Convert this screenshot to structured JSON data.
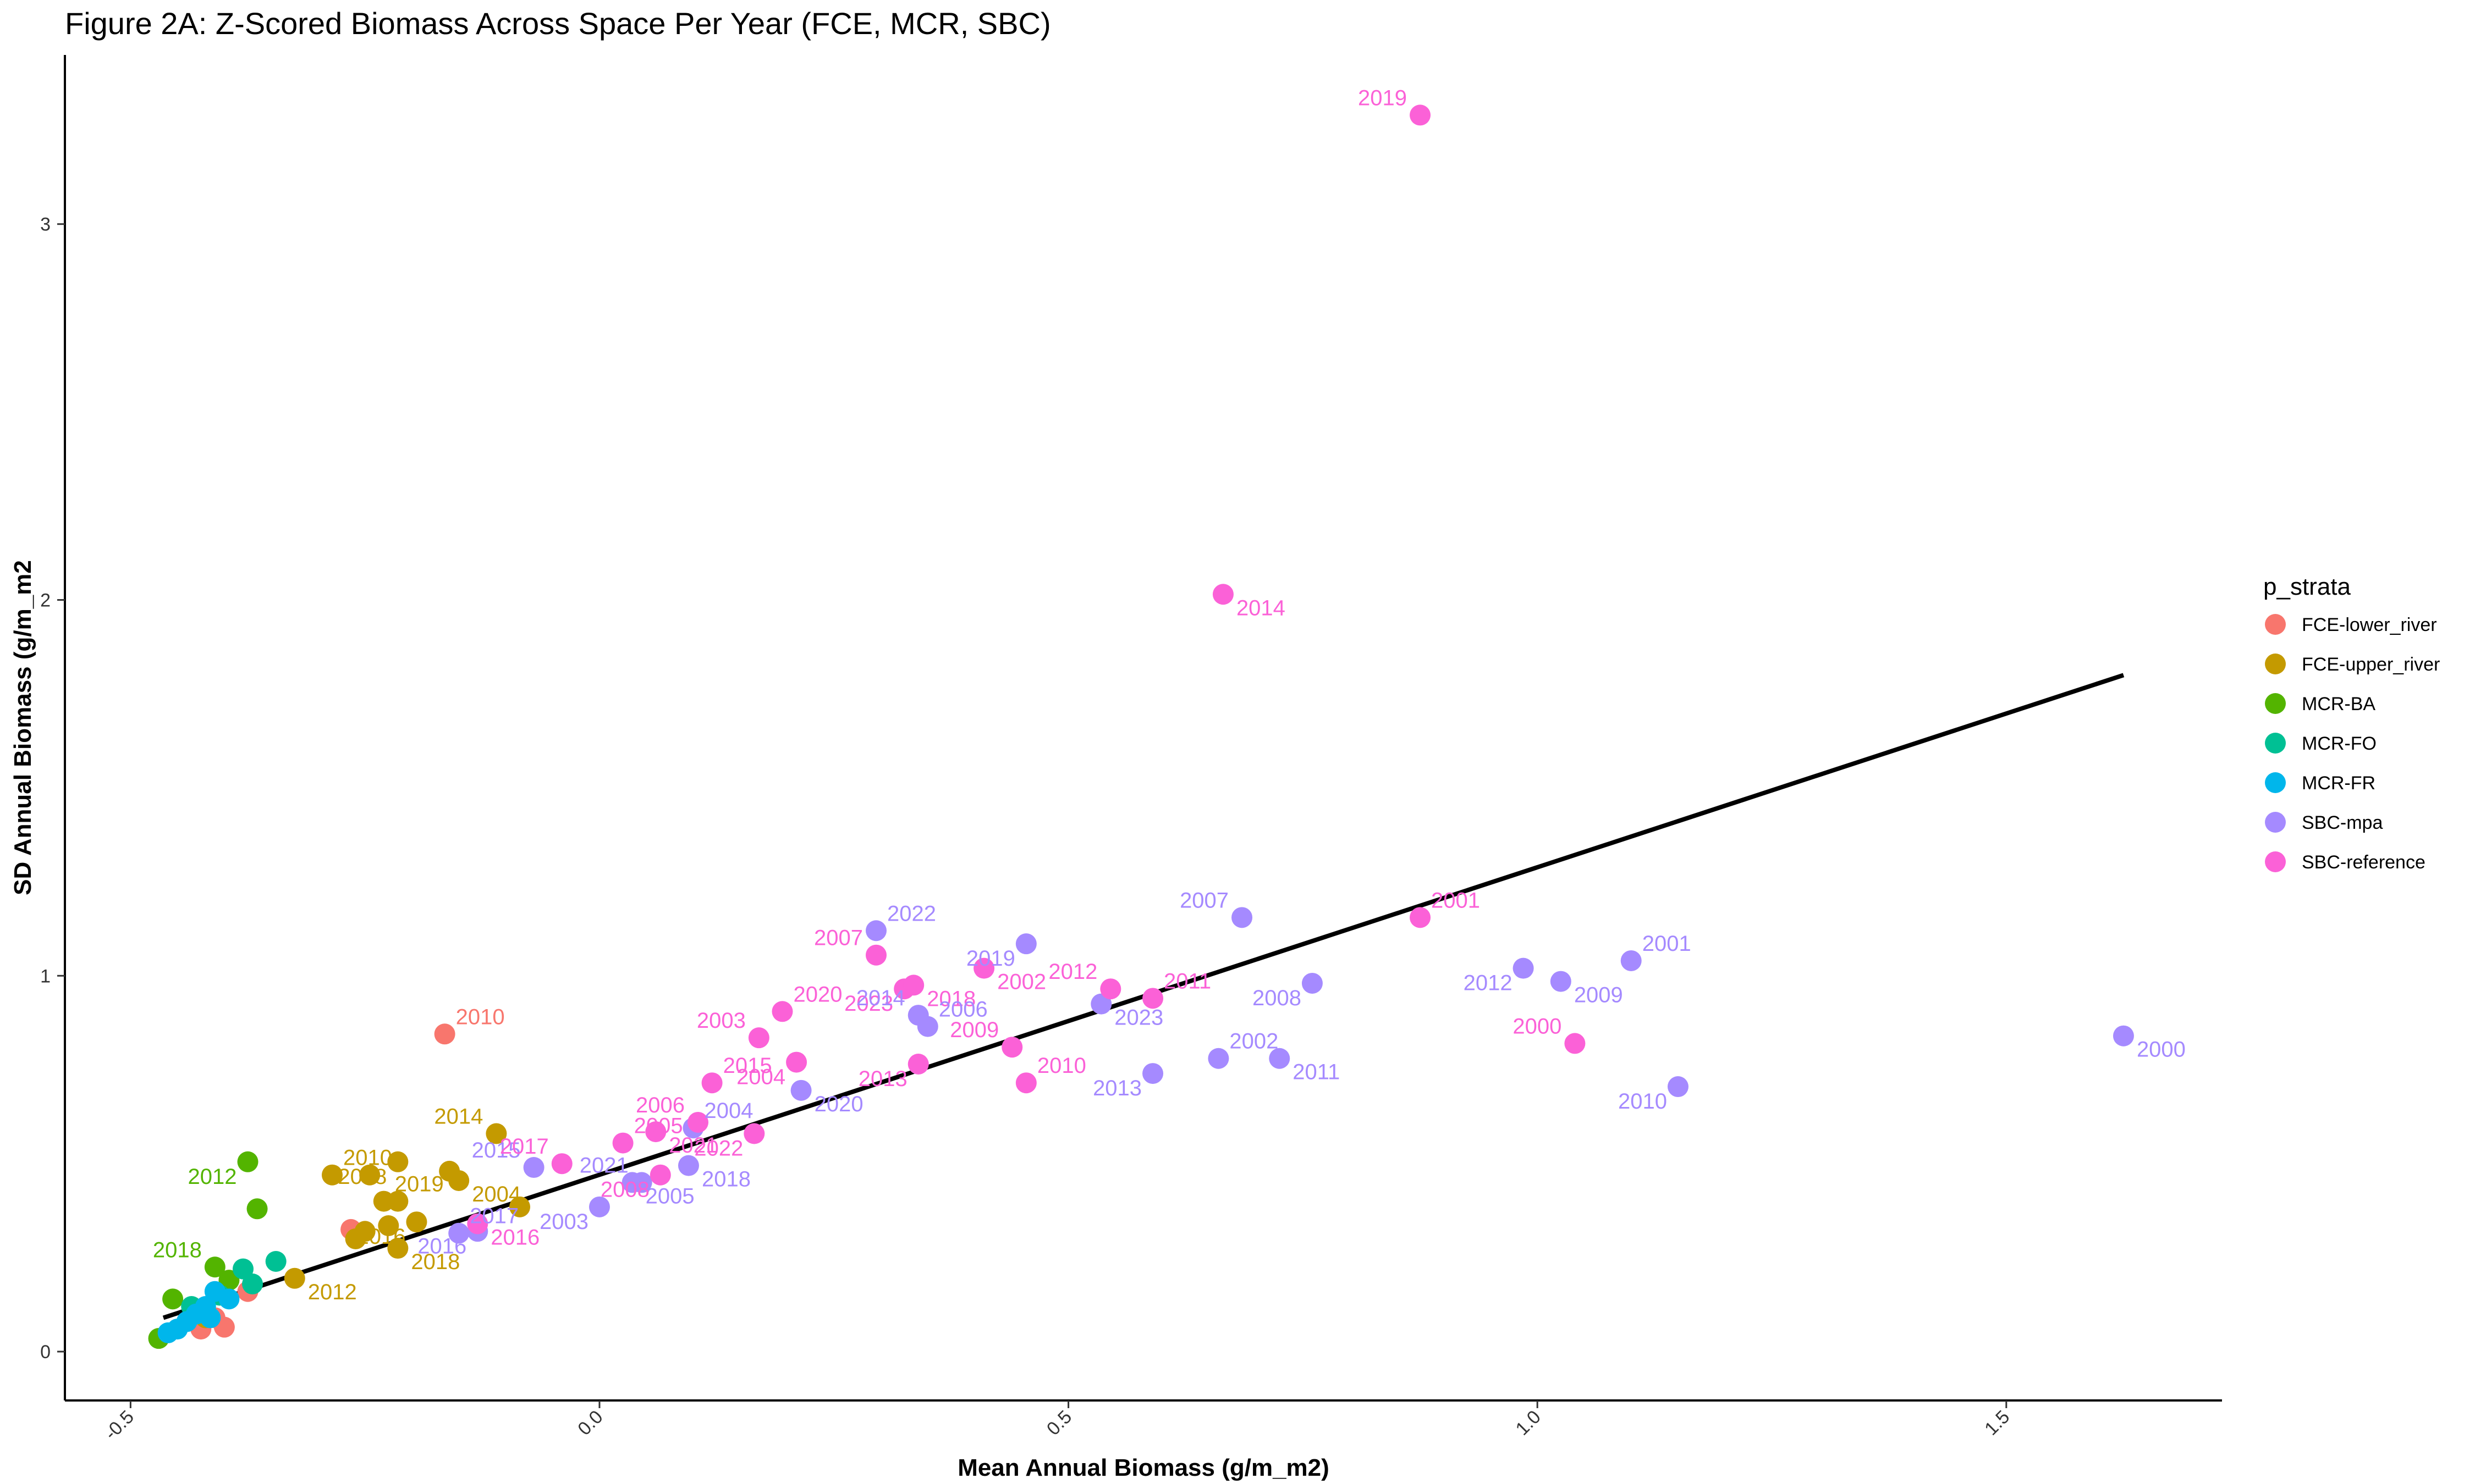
{
  "chart_data": {
    "type": "scatter",
    "title": "Figure 2A: Z-Scored Biomass Across Space Per Year (FCE, MCR, SBC)",
    "xlabel": "Mean Annual Biomass (g/m_m2)",
    "ylabel": "SD Annual Biomass (g/m_m2",
    "xlim": [
      -0.57,
      1.73
    ],
    "ylim": [
      -0.13,
      3.45
    ],
    "x_ticks": [
      -0.5,
      0.0,
      0.5,
      1.0,
      1.5
    ],
    "x_tick_labels": [
      "-0.5",
      "0.0",
      "0.5",
      "1.0",
      "1.5"
    ],
    "y_ticks": [
      0,
      1,
      2,
      3
    ],
    "y_tick_labels": [
      "0",
      "1",
      "2",
      "3"
    ],
    "grid": false,
    "legend": {
      "title": "p_strata",
      "placement": "right"
    },
    "trendline": {
      "x": [
        -0.465,
        1.625
      ],
      "y": [
        0.09,
        1.8
      ],
      "color": "#000000"
    },
    "series": [
      {
        "name": "FCE-lower_river",
        "color": "#F8766D",
        "points": [
          {
            "x": -0.165,
            "y": 0.845,
            "label": "2010"
          },
          {
            "x": -0.265,
            "y": 0.325
          },
          {
            "x": -0.4,
            "y": 0.065
          },
          {
            "x": -0.425,
            "y": 0.06
          },
          {
            "x": -0.375,
            "y": 0.16
          },
          {
            "x": -0.44,
            "y": 0.08
          },
          {
            "x": -0.41,
            "y": 0.09
          }
        ]
      },
      {
        "name": "FCE-upper_river",
        "color": "#C49A00",
        "points": [
          {
            "x": -0.285,
            "y": 0.47,
            "label": "2010"
          },
          {
            "x": -0.11,
            "y": 0.58,
            "label": "2014"
          },
          {
            "x": -0.215,
            "y": 0.505,
            "label": "2008"
          },
          {
            "x": -0.15,
            "y": 0.455,
            "label": "2004"
          },
          {
            "x": -0.245,
            "y": 0.47
          },
          {
            "x": -0.16,
            "y": 0.48
          },
          {
            "x": -0.23,
            "y": 0.4,
            "label": "2019"
          },
          {
            "x": -0.215,
            "y": 0.4
          },
          {
            "x": -0.195,
            "y": 0.345,
            "label": "2016"
          },
          {
            "x": -0.225,
            "y": 0.335
          },
          {
            "x": -0.25,
            "y": 0.32
          },
          {
            "x": -0.26,
            "y": 0.3
          },
          {
            "x": -0.215,
            "y": 0.275,
            "label": "2018"
          },
          {
            "x": -0.085,
            "y": 0.385
          },
          {
            "x": -0.325,
            "y": 0.195,
            "label": "2012"
          },
          {
            "x": -0.42,
            "y": 0.09
          }
        ]
      },
      {
        "name": "MCR-BA",
        "color": "#53B400",
        "points": [
          {
            "x": -0.375,
            "y": 0.505,
            "label": "2012"
          },
          {
            "x": -0.365,
            "y": 0.38
          },
          {
            "x": -0.41,
            "y": 0.225,
            "label": "2018"
          },
          {
            "x": -0.455,
            "y": 0.14
          },
          {
            "x": -0.47,
            "y": 0.035
          },
          {
            "x": -0.43,
            "y": 0.11
          },
          {
            "x": -0.395,
            "y": 0.19
          }
        ]
      },
      {
        "name": "MCR-FO",
        "color": "#00C094",
        "points": [
          {
            "x": -0.345,
            "y": 0.24
          },
          {
            "x": -0.38,
            "y": 0.22
          },
          {
            "x": -0.37,
            "y": 0.18
          },
          {
            "x": -0.405,
            "y": 0.15
          },
          {
            "x": -0.435,
            "y": 0.12
          }
        ]
      },
      {
        "name": "MCR-FR",
        "color": "#00B6EB",
        "points": [
          {
            "x": -0.41,
            "y": 0.16
          },
          {
            "x": -0.42,
            "y": 0.12
          },
          {
            "x": -0.43,
            "y": 0.1
          },
          {
            "x": -0.44,
            "y": 0.08
          },
          {
            "x": -0.45,
            "y": 0.06
          },
          {
            "x": -0.46,
            "y": 0.05
          },
          {
            "x": -0.415,
            "y": 0.09
          },
          {
            "x": -0.395,
            "y": 0.14
          }
        ]
      },
      {
        "name": "SBC-mpa",
        "color": "#A58AFF",
        "points": [
          {
            "x": 1.625,
            "y": 0.84,
            "label": "2000"
          },
          {
            "x": 1.1,
            "y": 1.04,
            "label": "2001"
          },
          {
            "x": 0.985,
            "y": 1.02,
            "label": "2012"
          },
          {
            "x": 1.025,
            "y": 0.985,
            "label": "2009"
          },
          {
            "x": 1.15,
            "y": 0.705,
            "label": "2010"
          },
          {
            "x": 0.685,
            "y": 1.155,
            "label": "2007"
          },
          {
            "x": 0.76,
            "y": 0.98,
            "label": "2008"
          },
          {
            "x": 0.66,
            "y": 0.78,
            "label": "2002"
          },
          {
            "x": 0.725,
            "y": 0.78,
            "label": "2011"
          },
          {
            "x": 0.59,
            "y": 0.74,
            "label": "2013"
          },
          {
            "x": 0.455,
            "y": 1.085,
            "label": "2019"
          },
          {
            "x": 0.295,
            "y": 1.12,
            "label": "2022"
          },
          {
            "x": 0.535,
            "y": 0.925,
            "label": "2023"
          },
          {
            "x": 0.34,
            "y": 0.895,
            "label": "2014"
          },
          {
            "x": 0.35,
            "y": 0.865,
            "label": "2006"
          },
          {
            "x": 0.215,
            "y": 0.695,
            "label": "2020"
          },
          {
            "x": 0.095,
            "y": 0.495,
            "label": "2018"
          },
          {
            "x": 0.1,
            "y": 0.595
          },
          {
            "x": 0.035,
            "y": 0.45,
            "label": "2005"
          },
          {
            "x": 0.045,
            "y": 0.45,
            "label": "2021"
          },
          {
            "x": 0.0,
            "y": 0.385,
            "label": "2003"
          },
          {
            "x": -0.07,
            "y": 0.49,
            "label": "2015"
          },
          {
            "x": -0.15,
            "y": 0.315,
            "label": "2017"
          },
          {
            "x": -0.13,
            "y": 0.32,
            "label": "2016"
          }
        ]
      },
      {
        "name": "SBC-reference",
        "color": "#FB61D7",
        "points": [
          {
            "x": 0.875,
            "y": 3.29,
            "label": "2019"
          },
          {
            "x": 0.665,
            "y": 2.015,
            "label": "2014"
          },
          {
            "x": 0.875,
            "y": 1.155,
            "label": "2001"
          },
          {
            "x": 1.04,
            "y": 0.82,
            "label": "2000"
          },
          {
            "x": 0.295,
            "y": 1.055,
            "label": "2007"
          },
          {
            "x": 0.325,
            "y": 0.965,
            "label": "2023"
          },
          {
            "x": 0.335,
            "y": 0.975,
            "label": "2018"
          },
          {
            "x": 0.41,
            "y": 1.02,
            "label": "2002"
          },
          {
            "x": 0.545,
            "y": 0.965,
            "label": "2012"
          },
          {
            "x": 0.59,
            "y": 0.94,
            "label": "2011"
          },
          {
            "x": 0.195,
            "y": 0.905,
            "label": "2020"
          },
          {
            "x": 0.17,
            "y": 0.835,
            "label": "2003"
          },
          {
            "x": 0.21,
            "y": 0.77,
            "label": "2004"
          },
          {
            "x": 0.44,
            "y": 0.81,
            "label": "2009"
          },
          {
            "x": 0.34,
            "y": 0.765,
            "label": "2013"
          },
          {
            "x": 0.455,
            "y": 0.715,
            "label": "2010"
          },
          {
            "x": 0.12,
            "y": 0.715,
            "label": "2015"
          },
          {
            "x": 0.105,
            "y": 0.61,
            "label": "2006"
          },
          {
            "x": 0.165,
            "y": 0.58,
            "label": "2022"
          },
          {
            "x": 0.06,
            "y": 0.585,
            "label": "2021"
          },
          {
            "x": 0.025,
            "y": 0.555,
            "label": "2005"
          },
          {
            "x": 0.065,
            "y": 0.47,
            "label": "2008"
          },
          {
            "x": -0.04,
            "y": 0.5,
            "label": "2017"
          },
          {
            "x": -0.13,
            "y": 0.34,
            "label": "2016"
          }
        ]
      }
    ],
    "annotations": [
      {
        "text": "2010",
        "color": "#F8766D",
        "x": -0.165,
        "y": 0.845
      },
      {
        "text": "2012",
        "color": "#53B400",
        "x": -0.375,
        "y": 0.505
      },
      {
        "text": "2012",
        "color": "#C49A00",
        "x": -0.325,
        "y": 0.195
      },
      {
        "text": "2018",
        "color": "#53B400",
        "x": -0.41,
        "y": 0.225
      },
      {
        "text": "2010",
        "color": "#C49A00",
        "x": -0.285,
        "y": 0.47
      },
      {
        "text": "2008",
        "color": "#C49A00",
        "x": -0.215,
        "y": 0.505
      },
      {
        "text": "2004",
        "color": "#C49A00",
        "x": -0.15,
        "y": 0.455
      },
      {
        "text": "2014",
        "color": "#C49A00",
        "x": -0.11,
        "y": 0.58
      },
      {
        "text": "2019",
        "color": "#C49A00",
        "x": -0.23,
        "y": 0.4
      },
      {
        "text": "2016",
        "color": "#C49A00",
        "x": -0.195,
        "y": 0.345
      },
      {
        "text": "2018",
        "color": "#C49A00",
        "x": -0.215,
        "y": 0.275
      },
      {
        "text": "2015",
        "color": "#A58AFF",
        "x": -0.07,
        "y": 0.49
      },
      {
        "text": "2017",
        "color": "#A58AFF",
        "x": -0.15,
        "y": 0.315
      },
      {
        "text": "2016",
        "color": "#A58AFF",
        "x": -0.13,
        "y": 0.32
      },
      {
        "text": "2016",
        "color": "#FB61D7",
        "x": -0.13,
        "y": 0.34
      },
      {
        "text": "2017",
        "color": "#FB61D7",
        "x": -0.04,
        "y": 0.5
      },
      {
        "text": "2005",
        "color": "#FB61D7",
        "x": 0.025,
        "y": 0.555
      },
      {
        "text": "2003",
        "color": "#A58AFF",
        "x": 0.0,
        "y": 0.385
      },
      {
        "text": "2005",
        "color": "#A58AFF",
        "x": 0.035,
        "y": 0.45
      },
      {
        "text": "2021",
        "color": "#A58AFF",
        "x": 0.045,
        "y": 0.45
      },
      {
        "text": "2004",
        "color": "#A58AFF",
        "x": 0.1,
        "y": 0.595
      },
      {
        "text": "2008",
        "color": "#FB61D7",
        "x": 0.065,
        "y": 0.47
      },
      {
        "text": "2021",
        "color": "#FB61D7",
        "x": 0.06,
        "y": 0.585
      },
      {
        "text": "2006",
        "color": "#FB61D7",
        "x": 0.105,
        "y": 0.61
      },
      {
        "text": "2015",
        "color": "#FB61D7",
        "x": 0.12,
        "y": 0.715
      },
      {
        "text": "2022",
        "color": "#FB61D7",
        "x": 0.165,
        "y": 0.58
      },
      {
        "text": "2018",
        "color": "#A58AFF",
        "x": 0.095,
        "y": 0.495
      },
      {
        "text": "2003",
        "color": "#FB61D7",
        "x": 0.17,
        "y": 0.835
      },
      {
        "text": "2020",
        "color": "#FB61D7",
        "x": 0.195,
        "y": 0.905
      },
      {
        "text": "2004",
        "color": "#FB61D7",
        "x": 0.21,
        "y": 0.77
      },
      {
        "text": "2020",
        "color": "#A58AFF",
        "x": 0.215,
        "y": 0.695
      },
      {
        "text": "2007",
        "color": "#FB61D7",
        "x": 0.295,
        "y": 1.055
      },
      {
        "text": "2022",
        "color": "#A58AFF",
        "x": 0.295,
        "y": 1.12
      },
      {
        "text": "2023",
        "color": "#FB61D7",
        "x": 0.325,
        "y": 0.965
      },
      {
        "text": "2018",
        "color": "#FB61D7",
        "x": 0.335,
        "y": 0.975
      },
      {
        "text": "2014",
        "color": "#A58AFF",
        "x": 0.34,
        "y": 0.895
      },
      {
        "text": "2006",
        "color": "#A58AFF",
        "x": 0.35,
        "y": 0.865
      },
      {
        "text": "2013",
        "color": "#FB61D7",
        "x": 0.34,
        "y": 0.765
      },
      {
        "text": "2002",
        "color": "#FB61D7",
        "x": 0.41,
        "y": 1.02
      },
      {
        "text": "2009",
        "color": "#FB61D7",
        "x": 0.44,
        "y": 0.81
      },
      {
        "text": "2010",
        "color": "#FB61D7",
        "x": 0.455,
        "y": 0.715
      },
      {
        "text": "2019",
        "color": "#A58AFF",
        "x": 0.455,
        "y": 1.085
      },
      {
        "text": "2023",
        "color": "#A58AFF",
        "x": 0.535,
        "y": 0.925
      },
      {
        "text": "2012",
        "color": "#FB61D7",
        "x": 0.545,
        "y": 0.965
      },
      {
        "text": "2011",
        "color": "#FB61D7",
        "x": 0.59,
        "y": 0.94
      },
      {
        "text": "2013",
        "color": "#A58AFF",
        "x": 0.59,
        "y": 0.74
      },
      {
        "text": "2014",
        "color": "#FB61D7",
        "x": 0.665,
        "y": 2.015
      },
      {
        "text": "2007",
        "color": "#A58AFF",
        "x": 0.685,
        "y": 1.155
      },
      {
        "text": "2002",
        "color": "#A58AFF",
        "x": 0.66,
        "y": 0.78
      },
      {
        "text": "2008",
        "color": "#A58AFF",
        "x": 0.76,
        "y": 0.98
      },
      {
        "text": "2011",
        "color": "#A58AFF",
        "x": 0.725,
        "y": 0.78
      },
      {
        "text": "2019",
        "color": "#FB61D7",
        "x": 0.875,
        "y": 3.29
      },
      {
        "text": "2001",
        "color": "#FB61D7",
        "x": 0.875,
        "y": 1.155
      },
      {
        "text": "2012",
        "color": "#A58AFF",
        "x": 0.985,
        "y": 1.02
      },
      {
        "text": "2009",
        "color": "#A58AFF",
        "x": 1.025,
        "y": 0.985
      },
      {
        "text": "2000",
        "color": "#FB61D7",
        "x": 1.04,
        "y": 0.82
      },
      {
        "text": "2001",
        "color": "#A58AFF",
        "x": 1.1,
        "y": 1.04
      },
      {
        "text": "2010",
        "color": "#A58AFF",
        "x": 1.15,
        "y": 0.705
      },
      {
        "text": "2000",
        "color": "#A58AFF",
        "x": 1.625,
        "y": 0.84
      }
    ]
  }
}
